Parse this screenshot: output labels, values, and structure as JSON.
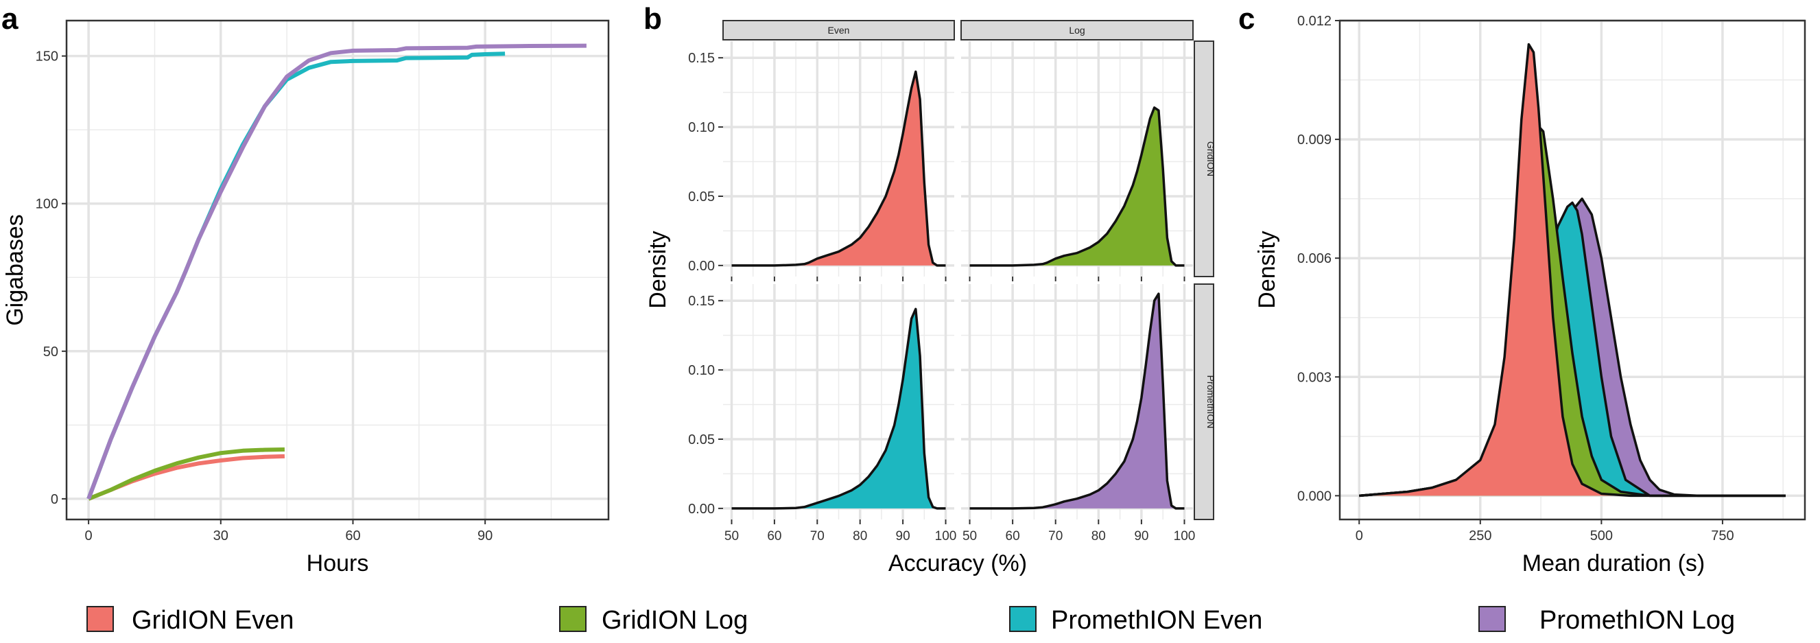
{
  "panels": {
    "a": "a",
    "b": "b",
    "c": "c"
  },
  "legend": [
    {
      "label": "GridION Even",
      "color": "#F0736B"
    },
    {
      "label": "GridION Log",
      "color": "#7CAE2A"
    },
    {
      "label": "PromethION Even",
      "color": "#1DB7C0"
    },
    {
      "label": "PromethION Log",
      "color": "#A07EBF"
    }
  ],
  "chart_data": [
    {
      "panel": "a",
      "type": "line",
      "xlabel": "Hours",
      "ylabel": "Gigabases",
      "xlim": [
        -5,
        118
      ],
      "ylim": [
        -7,
        162
      ],
      "xticks": [
        0,
        30,
        60,
        90
      ],
      "yticks": [
        0,
        50,
        100,
        150
      ],
      "grid": true,
      "series": [
        {
          "name": "GridION Even",
          "color": "#F0736B",
          "x": [
            0,
            5,
            10,
            15,
            20,
            25,
            30,
            35,
            40,
            44.5
          ],
          "y": [
            0,
            3,
            6,
            8.5,
            10.5,
            12,
            13,
            13.8,
            14.2,
            14.4
          ]
        },
        {
          "name": "GridION Log",
          "color": "#7CAE2A",
          "x": [
            0,
            5,
            10,
            15,
            20,
            25,
            30,
            35,
            40,
            44.5
          ],
          "y": [
            0,
            3,
            6.5,
            9.5,
            12,
            14,
            15.5,
            16.3,
            16.6,
            16.7
          ]
        },
        {
          "name": "PromethION Even",
          "color": "#1DB7C0",
          "x": [
            0,
            5,
            10,
            15,
            20,
            22,
            25,
            30,
            35,
            40,
            45,
            50,
            55,
            60,
            70,
            72,
            86,
            87,
            90,
            94.5
          ],
          "y": [
            0,
            20,
            38,
            55,
            70,
            77,
            88,
            105,
            120,
            133,
            142,
            146,
            148,
            148.3,
            148.5,
            149.3,
            149.5,
            150.4,
            150.6,
            150.8
          ]
        },
        {
          "name": "PromethION Log",
          "color": "#A07EBF",
          "x": [
            0,
            5,
            10,
            15,
            20,
            22,
            25,
            30,
            35,
            40,
            45,
            50,
            55,
            60,
            70,
            72,
            86,
            88,
            100,
            113
          ],
          "y": [
            0,
            20,
            38,
            55,
            70,
            77,
            88,
            104,
            119,
            133,
            143,
            148.5,
            151,
            151.8,
            152,
            152.6,
            152.8,
            153.2,
            153.4,
            153.5
          ]
        }
      ]
    },
    {
      "panel": "b",
      "type": "area",
      "xlabel": "Accuracy (%)",
      "ylabel": "Density",
      "xlim": [
        48,
        102
      ],
      "ylim": [
        -0.008,
        0.162
      ],
      "xticks": [
        50,
        60,
        70,
        80,
        90,
        100
      ],
      "yticks": [
        0.0,
        0.05,
        0.1,
        0.15
      ],
      "ytick_labels": [
        "0.00",
        "0.05",
        "0.10",
        "0.15"
      ],
      "facet_columns": [
        "Even",
        "Log"
      ],
      "facet_rows": [
        "GridION",
        "PromethION"
      ],
      "grid": true,
      "x": [
        50,
        55,
        60,
        65,
        67,
        68,
        70,
        72,
        75,
        78,
        80,
        82,
        84,
        86,
        88,
        89,
        90,
        91,
        92,
        93,
        94,
        95,
        96,
        97,
        98,
        100
      ],
      "series": [
        {
          "name": "GridION Even",
          "color": "#F0736B",
          "y": [
            0,
            0,
            0,
            0.0005,
            0.001,
            0.002,
            0.005,
            0.007,
            0.01,
            0.015,
            0.02,
            0.028,
            0.038,
            0.05,
            0.068,
            0.08,
            0.095,
            0.112,
            0.128,
            0.14,
            0.12,
            0.06,
            0.015,
            0.002,
            0,
            0
          ]
        },
        {
          "name": "GridION Log",
          "color": "#7CAE2A",
          "y": [
            0,
            0,
            0,
            0.0005,
            0.001,
            0.002,
            0.005,
            0.007,
            0.009,
            0.013,
            0.017,
            0.023,
            0.032,
            0.043,
            0.058,
            0.068,
            0.08,
            0.093,
            0.106,
            0.114,
            0.112,
            0.07,
            0.02,
            0.003,
            0,
            0
          ]
        },
        {
          "name": "PromethION Even",
          "color": "#1DB7C0",
          "y": [
            0,
            0,
            0,
            0.0003,
            0.001,
            0.002,
            0.004,
            0.006,
            0.009,
            0.013,
            0.017,
            0.023,
            0.031,
            0.042,
            0.06,
            0.075,
            0.093,
            0.115,
            0.137,
            0.144,
            0.11,
            0.04,
            0.008,
            0.001,
            0,
            0
          ]
        },
        {
          "name": "PromethION Log",
          "color": "#A07EBF",
          "y": [
            0,
            0,
            0,
            0.0003,
            0.0008,
            0.0015,
            0.003,
            0.005,
            0.007,
            0.01,
            0.013,
            0.018,
            0.025,
            0.034,
            0.05,
            0.063,
            0.08,
            0.103,
            0.128,
            0.15,
            0.155,
            0.09,
            0.02,
            0.002,
            0,
            0
          ]
        }
      ]
    },
    {
      "panel": "c",
      "type": "area",
      "xlabel": "Mean duration (s)",
      "ylabel": "Density",
      "xlim": [
        -40,
        920
      ],
      "ylim": [
        -0.0006,
        0.012
      ],
      "xticks": [
        0,
        250,
        500,
        750
      ],
      "yticks": [
        0.0,
        0.003,
        0.006,
        0.009,
        0.012
      ],
      "ytick_labels": [
        "0.000",
        "0.003",
        "0.006",
        "0.009",
        "0.012"
      ],
      "grid": true,
      "series": [
        {
          "name": "PromethION Log",
          "color": "#A07EBF",
          "x": [
            0,
            50,
            100,
            150,
            200,
            250,
            300,
            340,
            380,
            420,
            440,
            460,
            480,
            500,
            520,
            540,
            560,
            580,
            600,
            620,
            650,
            700,
            880
          ],
          "y": [
            0,
            5e-05,
            0.0001,
            0.0002,
            0.0003,
            0.0005,
            0.0012,
            0.0025,
            0.0045,
            0.0065,
            0.0072,
            0.0075,
            0.0071,
            0.006,
            0.0045,
            0.003,
            0.0018,
            0.0009,
            0.0004,
            0.00015,
            3e-05,
            0,
            0
          ]
        },
        {
          "name": "PromethION Even",
          "color": "#1DB7C0",
          "x": [
            0,
            50,
            100,
            150,
            200,
            250,
            300,
            340,
            380,
            410,
            430,
            440,
            450,
            460,
            480,
            500,
            520,
            550,
            600,
            880
          ],
          "y": [
            0,
            5e-05,
            0.0001,
            0.0002,
            0.0003,
            0.0006,
            0.0015,
            0.0032,
            0.0053,
            0.0068,
            0.0073,
            0.0074,
            0.0072,
            0.0066,
            0.0048,
            0.003,
            0.0015,
            0.0004,
            0,
            0
          ]
        },
        {
          "name": "GridION Log",
          "color": "#7CAE2A",
          "x": [
            0,
            50,
            100,
            150,
            200,
            250,
            300,
            330,
            350,
            365,
            380,
            400,
            420,
            440,
            460,
            480,
            500,
            540,
            600,
            880
          ],
          "y": [
            0,
            5e-05,
            0.0001,
            0.0002,
            0.0004,
            0.0007,
            0.002,
            0.0045,
            0.0075,
            0.0094,
            0.0092,
            0.0075,
            0.0055,
            0.0036,
            0.002,
            0.001,
            0.0004,
            0.0001,
            0,
            0
          ]
        },
        {
          "name": "GridION Even",
          "color": "#F0736B",
          "x": [
            0,
            50,
            100,
            150,
            200,
            250,
            280,
            300,
            320,
            335,
            350,
            360,
            370,
            385,
            400,
            420,
            440,
            460,
            500,
            560,
            880
          ],
          "y": [
            0,
            5e-05,
            0.0001,
            0.0002,
            0.0004,
            0.0009,
            0.0018,
            0.0035,
            0.0065,
            0.0095,
            0.0114,
            0.0112,
            0.0098,
            0.0072,
            0.0045,
            0.002,
            0.0008,
            0.0003,
            5e-05,
            0,
            0
          ]
        }
      ]
    }
  ]
}
